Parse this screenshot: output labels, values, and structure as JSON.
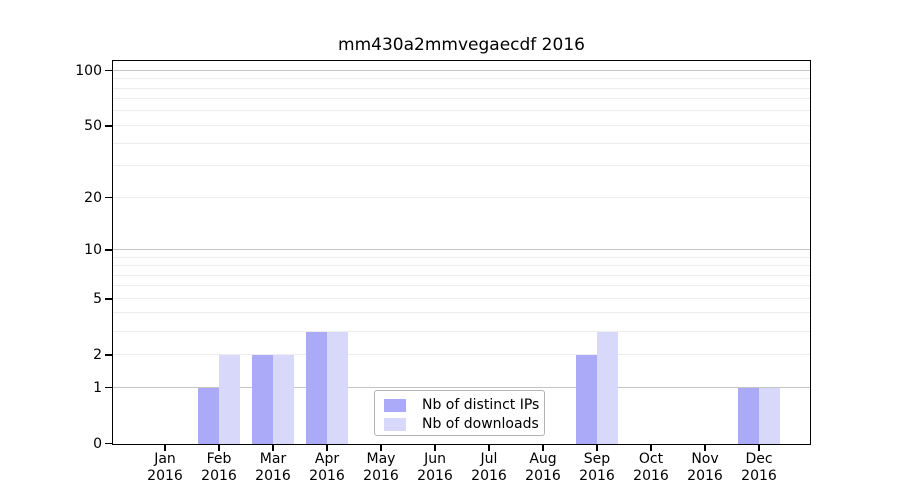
{
  "title": "mm430a2mmvegaecdf 2016",
  "chart_data": {
    "type": "bar",
    "title": "mm430a2mmvegaecdf 2016",
    "x_axis": {
      "months": [
        "Jan",
        "Feb",
        "Mar",
        "Apr",
        "May",
        "Jun",
        "Jul",
        "Aug",
        "Sep",
        "Oct",
        "Nov",
        "Dec"
      ],
      "year": "2016"
    },
    "y_axis": {
      "scale": "symlog (position = log10(value+1))",
      "tick_values": [
        0,
        1,
        2,
        5,
        10,
        20,
        50,
        100
      ],
      "major_gridlines": [
        1,
        10,
        100
      ],
      "minor_gridlines": [
        2,
        3,
        4,
        5,
        6,
        7,
        8,
        9,
        20,
        30,
        40,
        50,
        60,
        70,
        80,
        90
      ],
      "ylim": [
        0,
        113
      ],
      "grid": "horizontal"
    },
    "series": [
      {
        "name": "Nb of distinct IPs",
        "color": "#aaaaf8",
        "values": [
          0,
          1,
          2,
          3,
          0,
          0,
          0,
          0,
          2,
          0,
          0,
          1
        ]
      },
      {
        "name": "Nb of downloads",
        "color": "#d8d8fa",
        "values": [
          0,
          2,
          2,
          3,
          0,
          0,
          0,
          0,
          3,
          0,
          0,
          1
        ]
      }
    ],
    "legend": {
      "labels": [
        "Nb of distinct IPs",
        "Nb of downloads"
      ],
      "position": "lower center"
    }
  },
  "colors": {
    "background": "#ffffff",
    "bar_distinct_ips": "#aaaaf8",
    "bar_downloads": "#d8d8fa",
    "major_gridline": "#c4c4c4",
    "minor_gridline": "#ececec",
    "axis": "#000000",
    "legend_border": "#b3b3b3",
    "text": "#000000"
  }
}
